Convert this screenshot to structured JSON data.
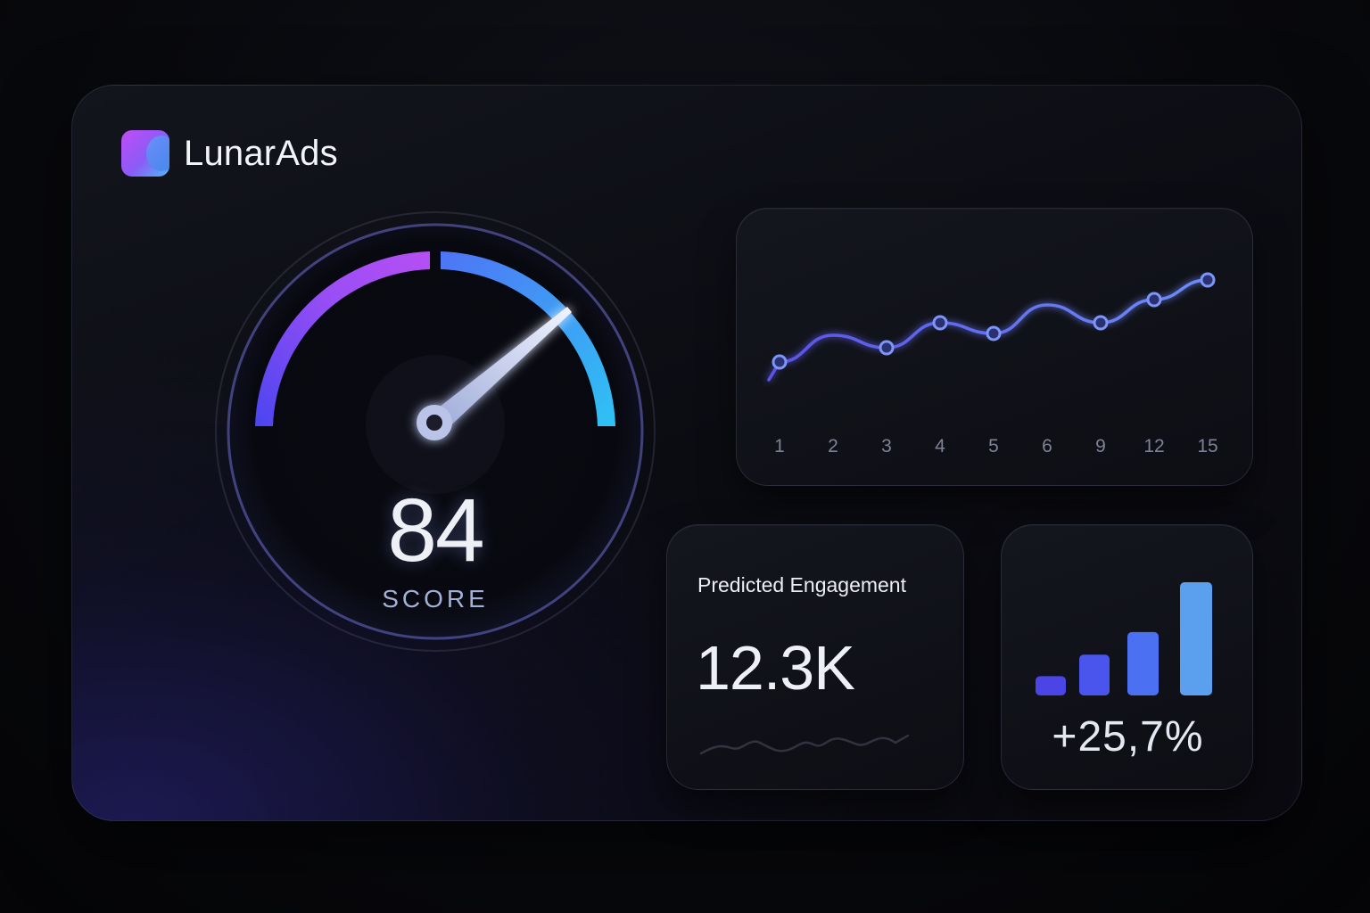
{
  "app": {
    "brand_name": "LunarAds",
    "logo_icon": "lunarads-logo-icon"
  },
  "gauge": {
    "value": "84",
    "label": "SCORE",
    "score_numeric": 84,
    "max": 100,
    "colors": {
      "start": "#5b4cf0",
      "mid": "#b14ef5",
      "end": "#2fc2f4",
      "needle": "#c9d3f2"
    }
  },
  "engagement": {
    "title": "Predicted Engagement",
    "value": "12.3K"
  },
  "growth": {
    "value": "+25,7%",
    "bar_values": [
      0.17,
      0.36,
      0.56,
      1.0
    ],
    "bar_colors": [
      "#4b45e6",
      "#4a55ee",
      "#4b70f2",
      "#5aa0ee"
    ]
  },
  "chart_data": {
    "type": "line",
    "categories": [
      "1",
      "2",
      "3",
      "4",
      "5",
      "6",
      "9",
      "12",
      "15"
    ],
    "series": [
      {
        "values": [
          34,
          49,
          42,
          56,
          50,
          66,
          56,
          69,
          80
        ]
      }
    ],
    "marker_indices": [
      0,
      2,
      3,
      4,
      6,
      7,
      8
    ],
    "ylim": [
      0,
      100
    ],
    "grid": false,
    "title": "",
    "xlabel": "",
    "ylabel": "",
    "color": "#6f72f5"
  }
}
